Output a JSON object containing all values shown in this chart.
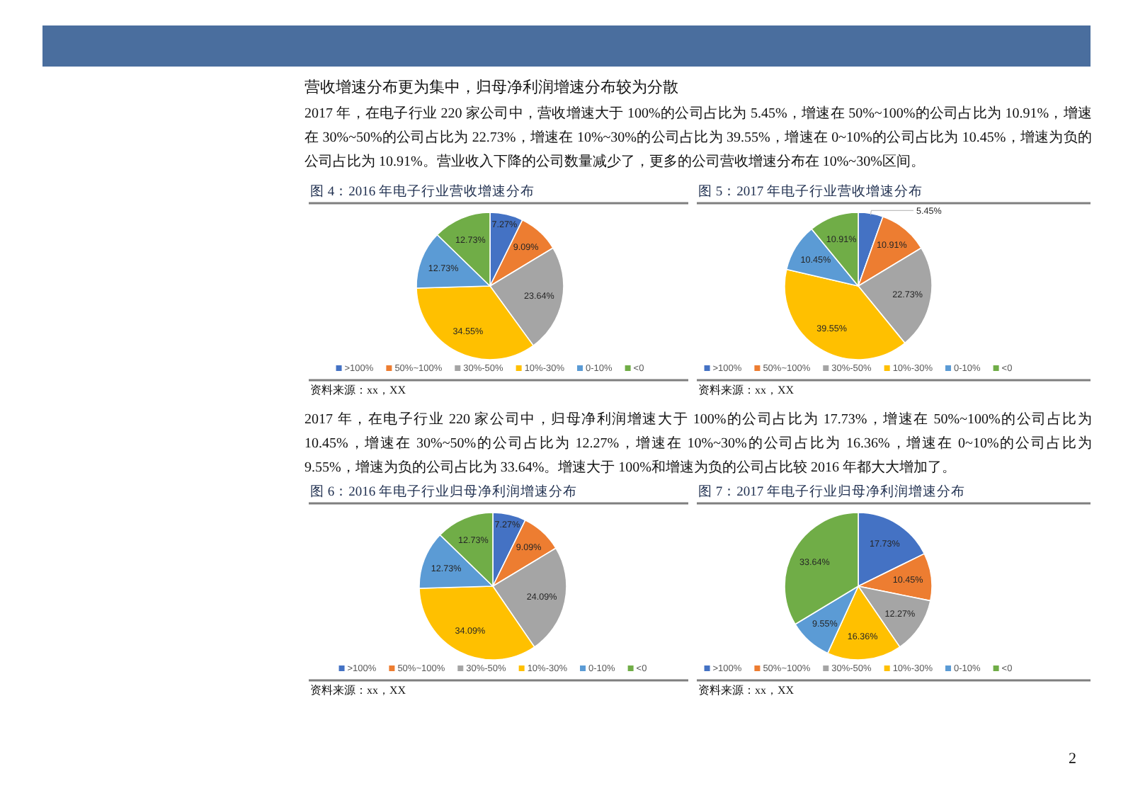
{
  "chart_data": [
    {
      "type": "other",
      "title": "营收增速分布更为集中，归母净利润增速分布较为分散",
      "annotations": [
        "2017 年，在电子行业 220 家公司中，营收增速大于 100%的公司占比为 5.45%，增速在 50%~100%的公司占比为 10.91%，增速在 30%~50%的公司占比为 22.73%，增速在 10%~30%的公司占比为 39.55%，增速在 0~10%的公司占比为 10.45%，增速为负的公司占比为 10.91%。营业收入下降的公司数量减少了，更多的公司营收增速分布在 10%~30%区间。"
      ]
    },
    {
      "type": "pie",
      "title": "图 4：2016 年电子行业营收增速分布",
      "categories": [
        ">100%",
        "50%~100%",
        "30%-50%",
        "10%-30%",
        "0-10%",
        "<0"
      ],
      "values": [
        7.27,
        9.09,
        23.64,
        34.55,
        12.73,
        12.73
      ],
      "colors": [
        "#4472c4",
        "#ed7d31",
        "#a5a5a5",
        "#ffc000",
        "#5b9bd5",
        "#70ad47"
      ],
      "value_labels": [
        "7.27%",
        "9.09%",
        "23.64%",
        "34.55%",
        "12.73%",
        "12.73%"
      ],
      "legend": "bottom",
      "annotations": [
        "资料来源：xx，XX"
      ]
    },
    {
      "type": "pie",
      "title": "图 5：2017 年电子行业营收增速分布",
      "categories": [
        ">100%",
        "50%~100%",
        "30%-50%",
        "10%-30%",
        "0-10%",
        "<0"
      ],
      "values": [
        5.45,
        10.91,
        22.73,
        39.55,
        10.45,
        10.91
      ],
      "colors": [
        "#4472c4",
        "#ed7d31",
        "#a5a5a5",
        "#ffc000",
        "#5b9bd5",
        "#70ad47"
      ],
      "value_labels": [
        "5.45%",
        "10.91%",
        "22.73%",
        "39.55%",
        "10.45%",
        "10.91%"
      ],
      "legend": "bottom",
      "annotations": [
        "资料来源：xx，XX"
      ]
    },
    {
      "type": "other",
      "annotations": [
        "2017 年，在电子行业 220 家公司中，归母净利润增速大于 100%的公司占比为 17.73%，增速在 50%~100%的公司占比为 10.45%，增速在 30%~50%的公司占比为 12.27%，增速在 10%~30%的公司占比为 16.36%，增速在 0~10%的公司占比为 9.55%，增速为负的公司占比为 33.64%。增速大于 100%和增速为负的公司占比较 2016 年都大大增加了。"
      ]
    },
    {
      "type": "pie",
      "title": "图 6：2016 年电子行业归母净利润增速分布",
      "categories": [
        ">100%",
        "50%~100%",
        "30%-50%",
        "10%-30%",
        "0-10%",
        "<0"
      ],
      "values": [
        7.27,
        9.09,
        24.09,
        34.09,
        12.73,
        12.73
      ],
      "colors": [
        "#4472c4",
        "#ed7d31",
        "#a5a5a5",
        "#ffc000",
        "#5b9bd5",
        "#70ad47"
      ],
      "value_labels": [
        "7.27%",
        "9.09%",
        "24.09%",
        "34.09%",
        "12.73%",
        "12.73%"
      ],
      "legend": "bottom",
      "annotations": [
        "资料来源：xx，XX"
      ]
    },
    {
      "type": "pie",
      "title": "图 7：2017 年电子行业归母净利润增速分布",
      "categories": [
        ">100%",
        "50%~100%",
        "30%-50%",
        "10%-30%",
        "0-10%",
        "<0"
      ],
      "values": [
        17.73,
        10.45,
        12.27,
        16.36,
        9.55,
        33.64
      ],
      "colors": [
        "#4472c4",
        "#ed7d31",
        "#a5a5a5",
        "#ffc000",
        "#5b9bd5",
        "#70ad47"
      ],
      "value_labels": [
        "17.73%",
        "10.45%",
        "12.27%",
        "16.36%",
        "9.55%",
        "33.64%"
      ],
      "legend": "bottom",
      "annotations": [
        "资料来源：xx，XX"
      ]
    },
    {
      "type": "other",
      "annotations": [
        "2"
      ]
    }
  ]
}
